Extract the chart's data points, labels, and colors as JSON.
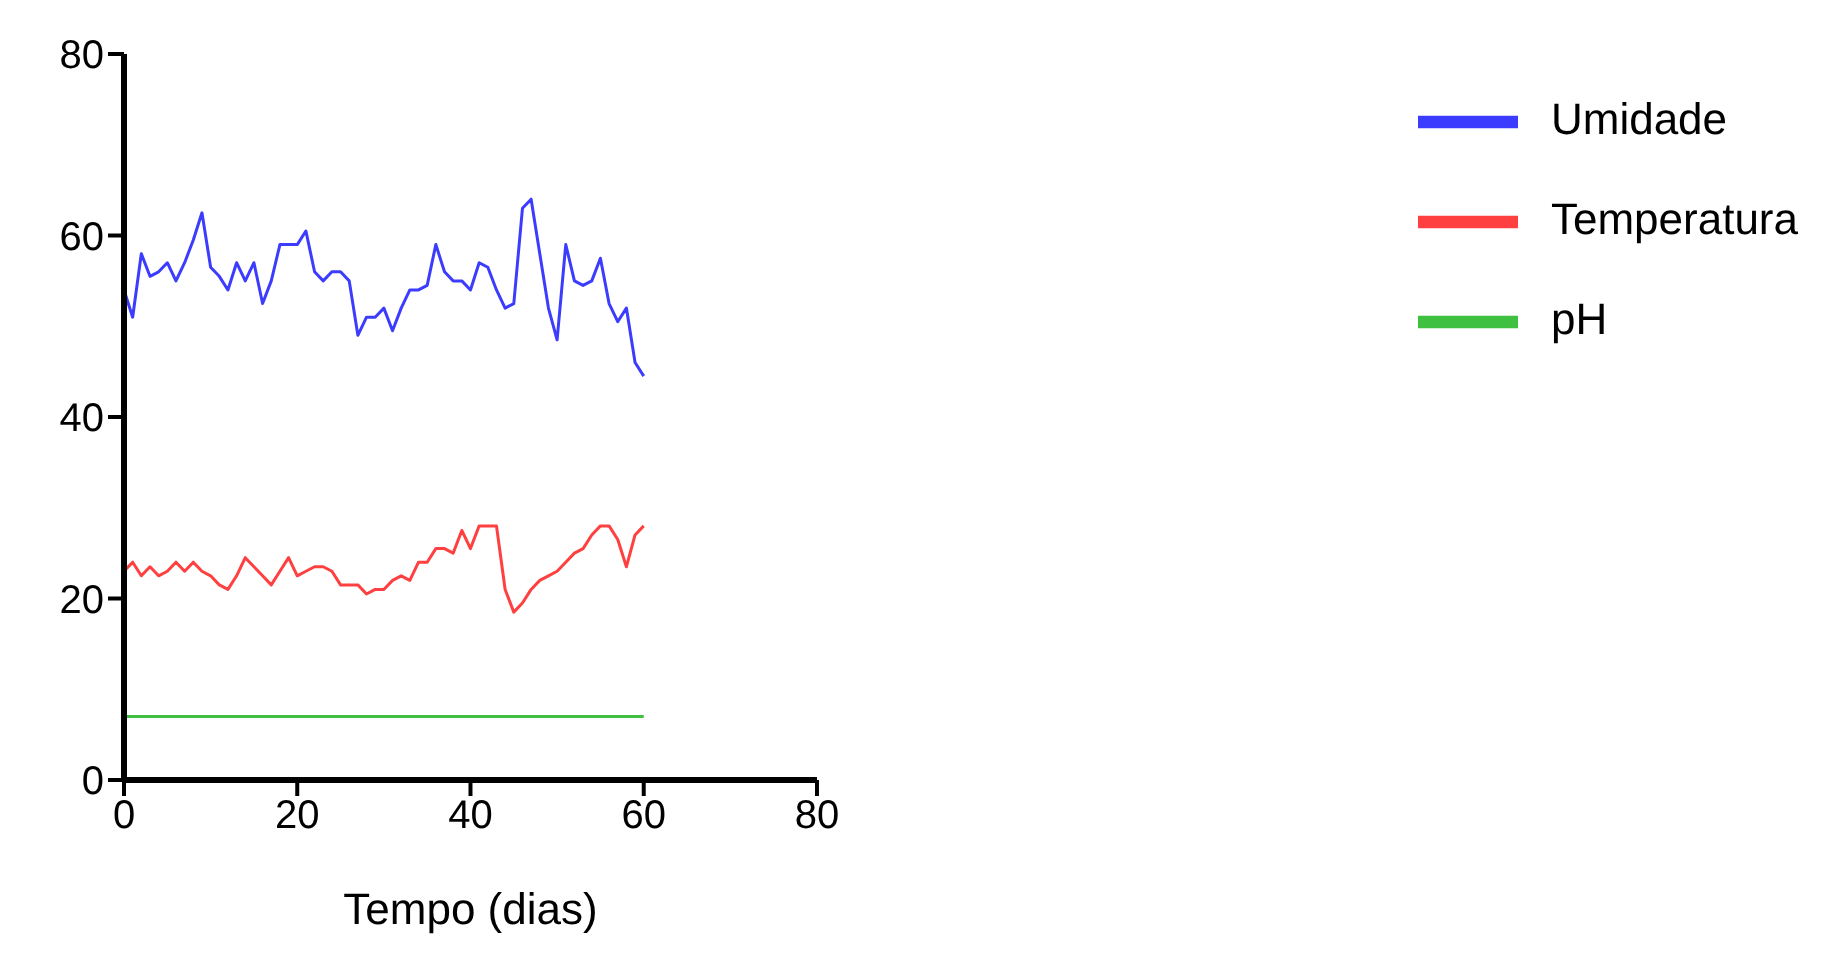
{
  "chart_data": {
    "type": "line",
    "xlabel": "Tempo (dias)",
    "x": [
      0,
      1,
      2,
      3,
      4,
      5,
      6,
      7,
      8,
      9,
      10,
      11,
      12,
      13,
      14,
      15,
      16,
      17,
      18,
      19,
      20,
      21,
      22,
      23,
      24,
      25,
      26,
      27,
      28,
      29,
      30,
      31,
      32,
      33,
      34,
      35,
      36,
      37,
      38,
      39,
      40,
      41,
      42,
      43,
      44,
      45,
      46,
      47,
      48,
      49,
      50,
      51,
      52,
      53,
      54,
      55,
      56,
      57,
      58,
      59,
      60
    ],
    "series": [
      {
        "name": "Umidade",
        "color": "#3c3cff",
        "values": [
          54,
          51,
          58,
          55.5,
          56,
          57,
          55,
          57,
          59.5,
          62.5,
          56.5,
          55.5,
          54,
          57,
          55,
          57,
          52.5,
          55,
          59,
          59,
          59,
          60.5,
          56,
          55,
          56,
          56,
          55,
          49,
          51,
          51,
          52,
          49.5,
          52,
          54,
          54,
          54.5,
          59,
          56,
          55,
          55,
          54,
          57,
          56.5,
          54,
          52,
          52.5,
          63,
          64,
          58,
          52,
          48.5,
          59,
          55,
          54.5,
          55,
          57.5,
          52.5,
          50.5,
          52,
          46,
          44.5
        ]
      },
      {
        "name": "Temperatura",
        "color": "#ff4040",
        "values": [
          23,
          24,
          22.5,
          23.5,
          22.5,
          23,
          24,
          23,
          24,
          23,
          22.5,
          21.5,
          21,
          22.5,
          24.5,
          23.5,
          22.5,
          21.5,
          23,
          24.5,
          22.5,
          23,
          23.5,
          23.5,
          23,
          21.5,
          21.5,
          21.5,
          20.5,
          21,
          21,
          22,
          22.5,
          22,
          24,
          24,
          25.5,
          25.5,
          25,
          27.5,
          25.5,
          28,
          28,
          28,
          21,
          18.5,
          19.5,
          21,
          22,
          22.5,
          23,
          24,
          25,
          25.5,
          27,
          28,
          28,
          26.5,
          23.5,
          27,
          28
        ]
      },
      {
        "name": "pH",
        "color": "#40c040",
        "values": [
          7,
          7,
          7,
          7,
          7,
          7,
          7,
          7,
          7,
          7,
          7,
          7,
          7,
          7,
          7,
          7,
          7,
          7,
          7,
          7,
          7,
          7,
          7,
          7,
          7,
          7,
          7,
          7,
          7,
          7,
          7,
          7,
          7,
          7,
          7,
          7,
          7,
          7,
          7,
          7,
          7,
          7,
          7,
          7,
          7,
          7,
          7,
          7,
          7,
          7,
          7,
          7,
          7,
          7,
          7,
          7,
          7,
          7,
          7,
          7,
          7
        ]
      }
    ],
    "xlim": [
      0,
      80
    ],
    "xticks": [
      0,
      20,
      40,
      60,
      80
    ],
    "ylim": [
      0,
      80
    ],
    "yticks": [
      0,
      20,
      40,
      60,
      80
    ],
    "grid": false,
    "legend": "top right",
    "marker": "none",
    "line_style": "solid"
  }
}
